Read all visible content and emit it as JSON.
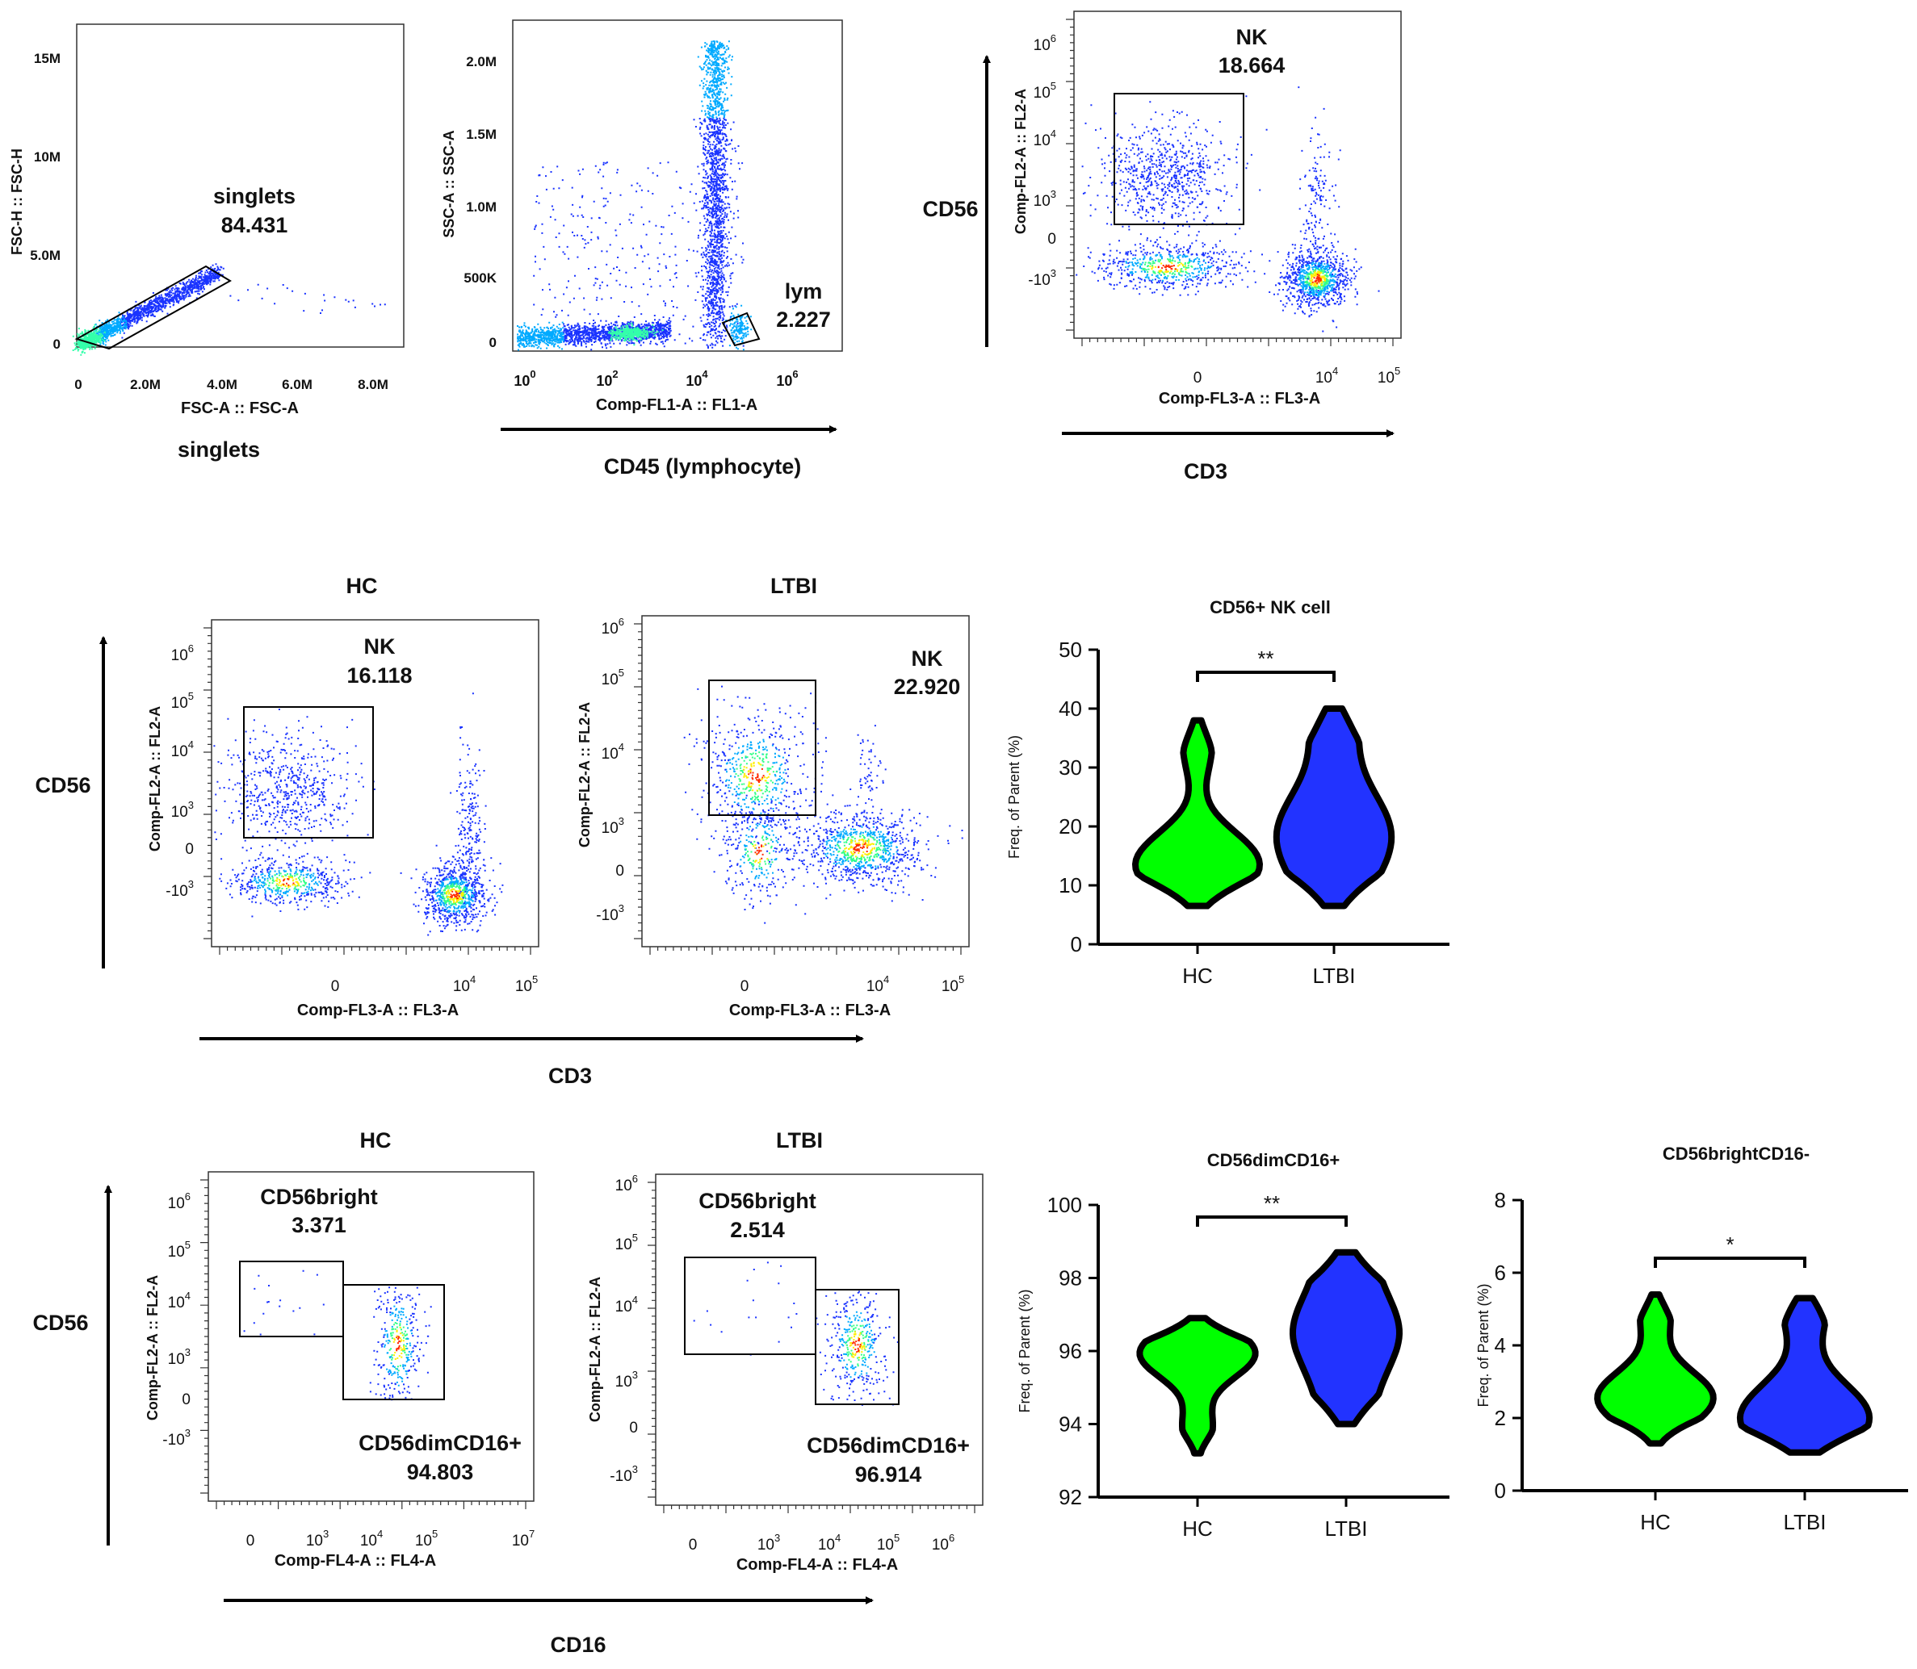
{
  "colors": {
    "hc": "#00ff00",
    "ltbi": "#2233ff",
    "outline": "#000000",
    "density_low": "#1a33ff",
    "density_high": "#ff2a00"
  },
  "row1": {
    "singlets": {
      "xlabel": "FSC-A :: FSC-A",
      "ylabel": "FSC-H :: FSC-H",
      "xticks": [
        "0",
        "2.0M",
        "4.0M",
        "6.0M",
        "8.0M"
      ],
      "yticks": [
        "0",
        "5.0M",
        "10M",
        "15M"
      ],
      "gate_name": "singlets",
      "gate_value": "84.431",
      "caption": "singlets"
    },
    "lym": {
      "xlabel": "Comp-FL1-A :: FL1-A",
      "ylabel": "SSC-A :: SSC-A",
      "xticks": [
        "10",
        "10",
        "10",
        "10"
      ],
      "xexps": [
        "0",
        "2",
        "4",
        "6"
      ],
      "yticks": [
        "0",
        "500K",
        "1.0M",
        "1.5M",
        "2.0M"
      ],
      "gate_name": "lym",
      "gate_value": "2.227",
      "caption": "CD45 (lymphocyte)"
    },
    "nk": {
      "xlabel": "Comp-FL3-A :: FL3-A",
      "ylabel": "Comp-FL2-A :: FL2-A",
      "gate_name": "NK",
      "gate_value": "18.664",
      "side_label": "CD56",
      "caption": "CD3"
    }
  },
  "row2": {
    "hc_title": "HC",
    "ltbi_title": "LTBI",
    "side_label": "CD56",
    "caption": "CD3",
    "xlabel": "Comp-FL3-A :: FL3-A",
    "ylabel": "Comp-FL2-A :: FL2-A",
    "hc_gate": {
      "name": "NK",
      "value": "16.118"
    },
    "ltbi_gate": {
      "name": "NK",
      "value": "22.920"
    }
  },
  "row3": {
    "hc_title": "HC",
    "ltbi_title": "LTBI",
    "side_label": "CD56",
    "caption": "CD16",
    "xlabel": "Comp-FL4-A :: FL4-A",
    "ylabel": "Comp-FL2-A :: FL2-A",
    "hc_bright": {
      "name": "CD56bright",
      "value": "3.371"
    },
    "hc_dim": {
      "name": "CD56dimCD16+",
      "value": "94.803"
    },
    "ltbi_bright": {
      "name": "CD56bright",
      "value": "2.514"
    },
    "ltbi_dim": {
      "name": "CD56dimCD16+",
      "value": "96.914"
    }
  },
  "log_axis": {
    "y_main": [
      "10",
      "10",
      "10",
      "10"
    ],
    "y_exps": [
      "6",
      "5",
      "4",
      "3"
    ],
    "zero": "0",
    "neg": "-10",
    "neg_exp": "3",
    "x_a": [
      "10",
      "10"
    ],
    "x_a_exps": [
      "4",
      "5"
    ],
    "x_b": [
      "10",
      "10",
      "10",
      "10"
    ],
    "x_b_exps": [
      "3",
      "4",
      "5",
      "7"
    ],
    "x_c": [
      "10",
      "10",
      "10",
      "10"
    ],
    "x_c_exps": [
      "3",
      "4",
      "5",
      "6"
    ]
  },
  "chart_data": [
    {
      "type": "violin",
      "title": "CD56+ NK cell",
      "categories": [
        "HC",
        "LTBI"
      ],
      "ylabel": "Freq. of Parent (%)",
      "ylim": [
        0,
        50
      ],
      "yticks": [
        0,
        10,
        20,
        30,
        40,
        50
      ],
      "significance": "**",
      "series": [
        {
          "name": "HC",
          "min": 6.5,
          "max": 38,
          "median": 14
        },
        {
          "name": "LTBI",
          "min": 6.5,
          "max": 40,
          "median": 20
        }
      ]
    },
    {
      "type": "violin",
      "title": "CD56dimCD16+",
      "categories": [
        "HC",
        "LTBI"
      ],
      "ylabel": "Freq. of Parent (%)",
      "ylim": [
        92,
        100
      ],
      "yticks": [
        92,
        94,
        96,
        98,
        100
      ],
      "significance": "**",
      "series": [
        {
          "name": "HC",
          "min": 93.2,
          "max": 96.9,
          "median": 95.8
        },
        {
          "name": "LTBI",
          "min": 94.0,
          "max": 98.7,
          "median": 96.5
        }
      ]
    },
    {
      "type": "violin",
      "title": "CD56brightCD16-",
      "categories": [
        "HC",
        "LTBI"
      ],
      "ylabel": "Freq. of Parent (%)",
      "ylim": [
        0,
        8
      ],
      "yticks": [
        0,
        2,
        4,
        6,
        8
      ],
      "significance": "*",
      "series": [
        {
          "name": "HC",
          "min": 1.3,
          "max": 5.4,
          "median": 2.7
        },
        {
          "name": "LTBI",
          "min": 1.05,
          "max": 5.3,
          "median": 2.2
        }
      ]
    }
  ]
}
